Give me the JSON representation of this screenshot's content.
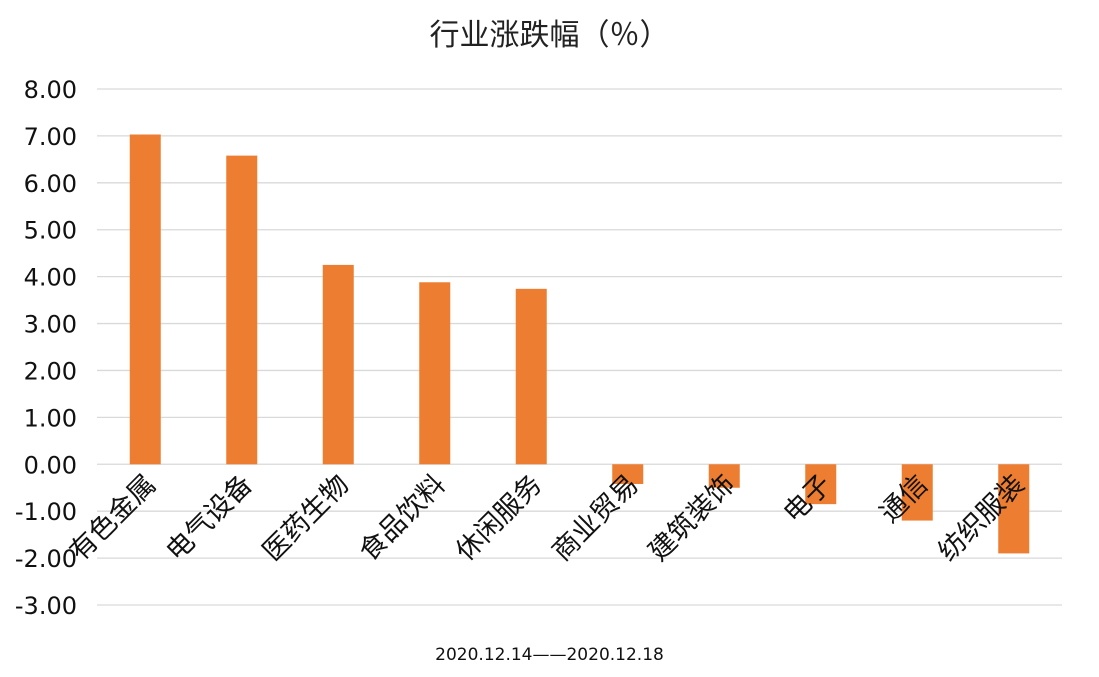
{
  "chart_data": {
    "type": "bar",
    "title": "行业涨跌幅（％）",
    "categories": [
      "有色金属",
      "电气设备",
      "医药生物",
      "食品饮料",
      "休闲服务",
      "商业贸易",
      "建筑装饰",
      "电子",
      "通信",
      "纺织服装"
    ],
    "values": [
      7.03,
      6.58,
      4.25,
      3.88,
      3.74,
      -0.42,
      -0.5,
      -0.85,
      -1.2,
      -1.9
    ],
    "ylim": [
      -3,
      8
    ],
    "yticks": [
      "8.00",
      "7.00",
      "6.00",
      "5.00",
      "4.00",
      "3.00",
      "2.00",
      "1.00",
      "0.00",
      "-1.00",
      "-2.00",
      "-3.00"
    ],
    "grid": true,
    "bar_color": "#ED7D31",
    "grid_color": "#D9D9D9",
    "footnote": "2020.12.14——2020.12.18"
  }
}
